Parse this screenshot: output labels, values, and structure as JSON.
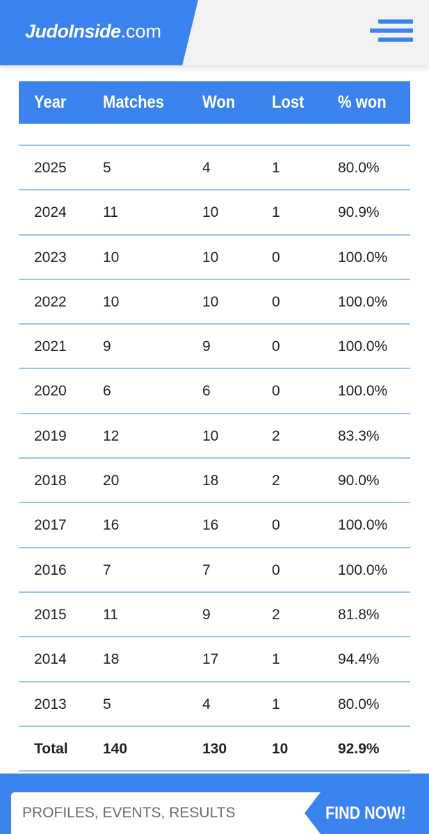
{
  "header": {
    "logo_brand": "JudoInside",
    "logo_tld": ".com",
    "accent_color": "#3a82ee"
  },
  "table": {
    "columns": [
      "Year",
      "Matches",
      "Won",
      "Lost",
      "% won"
    ],
    "rows": [
      [
        "2025",
        "5",
        "4",
        "1",
        "80.0%"
      ],
      [
        "2024",
        "11",
        "10",
        "1",
        "90.9%"
      ],
      [
        "2023",
        "10",
        "10",
        "0",
        "100.0%"
      ],
      [
        "2022",
        "10",
        "10",
        "0",
        "100.0%"
      ],
      [
        "2021",
        "9",
        "9",
        "0",
        "100.0%"
      ],
      [
        "2020",
        "6",
        "6",
        "0",
        "100.0%"
      ],
      [
        "2019",
        "12",
        "10",
        "2",
        "83.3%"
      ],
      [
        "2018",
        "20",
        "18",
        "2",
        "90.0%"
      ],
      [
        "2017",
        "16",
        "16",
        "0",
        "100.0%"
      ],
      [
        "2016",
        "7",
        "7",
        "0",
        "100.0%"
      ],
      [
        "2015",
        "11",
        "9",
        "2",
        "81.8%"
      ],
      [
        "2014",
        "18",
        "17",
        "1",
        "94.4%"
      ],
      [
        "2013",
        "5",
        "4",
        "1",
        "80.0%"
      ]
    ],
    "total": [
      "Total",
      "140",
      "130",
      "10",
      "92.9%"
    ]
  },
  "search": {
    "placeholder": "PROFILES, EVENTS, RESULTS",
    "button_label": "FIND NOW!"
  },
  "icons": {
    "menu": "hamburger-menu-icon"
  }
}
